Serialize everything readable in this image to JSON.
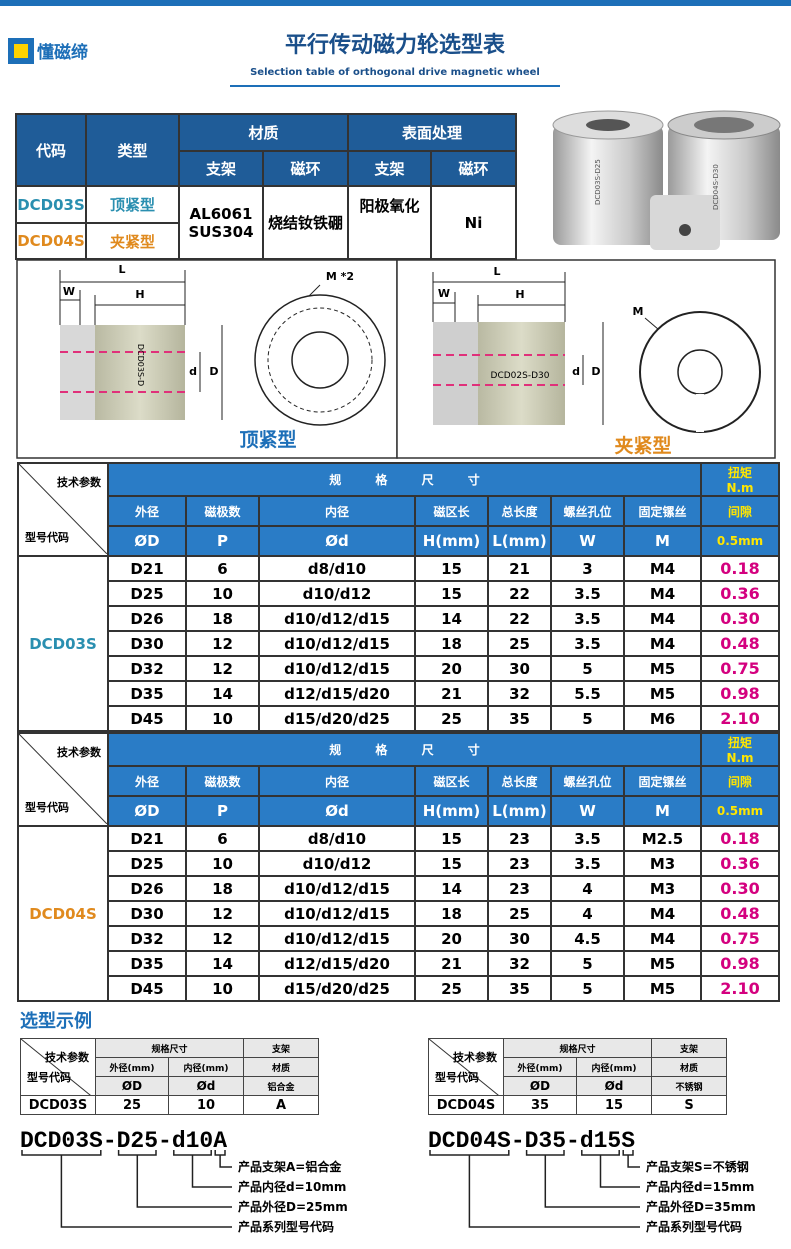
{
  "header": {
    "logo": "懂磁缔",
    "title": "平行传动磁力轮选型表",
    "subtitle": "Selection table of orthogonal drive magnetic wheel"
  },
  "material_table": {
    "headers": [
      "代码",
      "类型",
      "材质",
      "表面处理"
    ],
    "subheaders": [
      "支架",
      "磁环",
      "支架",
      "磁环"
    ],
    "rows": [
      [
        "DCD03S",
        "顶紧型"
      ],
      [
        "DCD04S",
        "夹紧型"
      ]
    ],
    "frame": [
      "AL6061",
      "SUS304"
    ],
    "magnet": "烧结钕铁硼",
    "finish": "阳极氧化",
    "coating": "Ni"
  },
  "photos": [
    "DCD03S-D25",
    "DCD04S-D30"
  ],
  "diagrams": [
    {
      "L": "L",
      "W": "W",
      "H": "H",
      "M": "M *2",
      "d": "d",
      "D": "D",
      "part": "DCD03S-D",
      "caption": "顶紧型"
    },
    {
      "L": "L",
      "W": "W",
      "H": "H",
      "M": "M",
      "d": "d",
      "D": "D",
      "part": "DCD02S-D30",
      "caption": "夹紧型"
    }
  ],
  "spec_tables": [
    {
      "corner_top": "技术参数",
      "corner_bottom": "型号代码",
      "group": "规 格 尺 寸",
      "torque": [
        "扭矩",
        "N.m"
      ],
      "columns": [
        "外径",
        "磁极数",
        "内径",
        "磁区长",
        "总长度",
        "螺丝孔位",
        "固定镙丝",
        "间隙"
      ],
      "symbols": [
        "ØD",
        "P",
        "Ød",
        "H(mm)",
        "L(mm)",
        "W",
        "M",
        "0.5mm"
      ],
      "code": "DCD03S",
      "rows": [
        [
          "D21",
          "6",
          "d8/d10",
          "15",
          "21",
          "3",
          "M4",
          "0.18"
        ],
        [
          "D25",
          "10",
          "d10/d12",
          "15",
          "22",
          "3.5",
          "M4",
          "0.36"
        ],
        [
          "D26",
          "18",
          "d10/d12/d15",
          "14",
          "22",
          "3.5",
          "M4",
          "0.30"
        ],
        [
          "D30",
          "12",
          "d10/d12/d15",
          "18",
          "25",
          "3.5",
          "M4",
          "0.48"
        ],
        [
          "D32",
          "12",
          "d10/d12/d15",
          "20",
          "30",
          "5",
          "M5",
          "0.75"
        ],
        [
          "D35",
          "14",
          "d12/d15/d20",
          "21",
          "32",
          "5.5",
          "M5",
          "0.98"
        ],
        [
          "D45",
          "10",
          "d15/d20/d25",
          "25",
          "35",
          "5",
          "M6",
          "2.10"
        ]
      ]
    },
    {
      "corner_top": "技术参数",
      "corner_bottom": "型号代码",
      "group": "规 格 尺 寸",
      "torque": [
        "扭矩",
        "N.m"
      ],
      "columns": [
        "外径",
        "磁极数",
        "内径",
        "磁区长",
        "总长度",
        "螺丝孔位",
        "固定镙丝",
        "间隙"
      ],
      "symbols": [
        "ØD",
        "P",
        "Ød",
        "H(mm)",
        "L(mm)",
        "W",
        "M",
        "0.5mm"
      ],
      "code": "DCD04S",
      "rows": [
        [
          "D21",
          "6",
          "d8/d10",
          "15",
          "23",
          "3.5",
          "M2.5",
          "0.18"
        ],
        [
          "D25",
          "10",
          "d10/d12",
          "15",
          "23",
          "3.5",
          "M3",
          "0.36"
        ],
        [
          "D26",
          "18",
          "d10/d12/d15",
          "14",
          "23",
          "4",
          "M3",
          "0.30"
        ],
        [
          "D30",
          "12",
          "d10/d12/d15",
          "18",
          "25",
          "4",
          "M4",
          "0.48"
        ],
        [
          "D32",
          "12",
          "d10/d12/d15",
          "20",
          "30",
          "4.5",
          "M4",
          "0.75"
        ],
        [
          "D35",
          "14",
          "d12/d15/d20",
          "21",
          "32",
          "5",
          "M5",
          "0.98"
        ],
        [
          "D45",
          "10",
          "d15/d20/d25",
          "25",
          "35",
          "5",
          "M5",
          "2.10"
        ]
      ]
    }
  ],
  "example": {
    "title": "选型示例",
    "cases": [
      {
        "corner_top": "技术参数",
        "corner_bottom": "型号代码",
        "headers": [
          "规格尺寸",
          "支架"
        ],
        "subheaders": [
          "外径(mm)",
          "内径(mm)",
          "材质"
        ],
        "symbols": [
          "ØD",
          "Ød",
          "铝合金"
        ],
        "row": [
          "DCD03S",
          "25",
          "10",
          "A"
        ],
        "code": "DCD03S-D25-d10A",
        "notes": [
          "产品支架A=铝合金",
          "产品内径d=10mm",
          "产品外径D=25mm",
          "产品系列型号代码"
        ]
      },
      {
        "corner_top": "技术参数",
        "corner_bottom": "型号代码",
        "headers": [
          "规格尺寸",
          "支架"
        ],
        "subheaders": [
          "外径(mm)",
          "内径(mm)",
          "材质"
        ],
        "symbols": [
          "ØD",
          "Ød",
          "不锈钢"
        ],
        "row": [
          "DCD04S",
          "35",
          "15",
          "S"
        ],
        "code": "DCD04S-D35-d15S",
        "notes": [
          "产品支架S=不锈钢",
          "产品内径d=15mm",
          "产品外径D=35mm",
          "产品系列型号代码"
        ]
      }
    ]
  }
}
